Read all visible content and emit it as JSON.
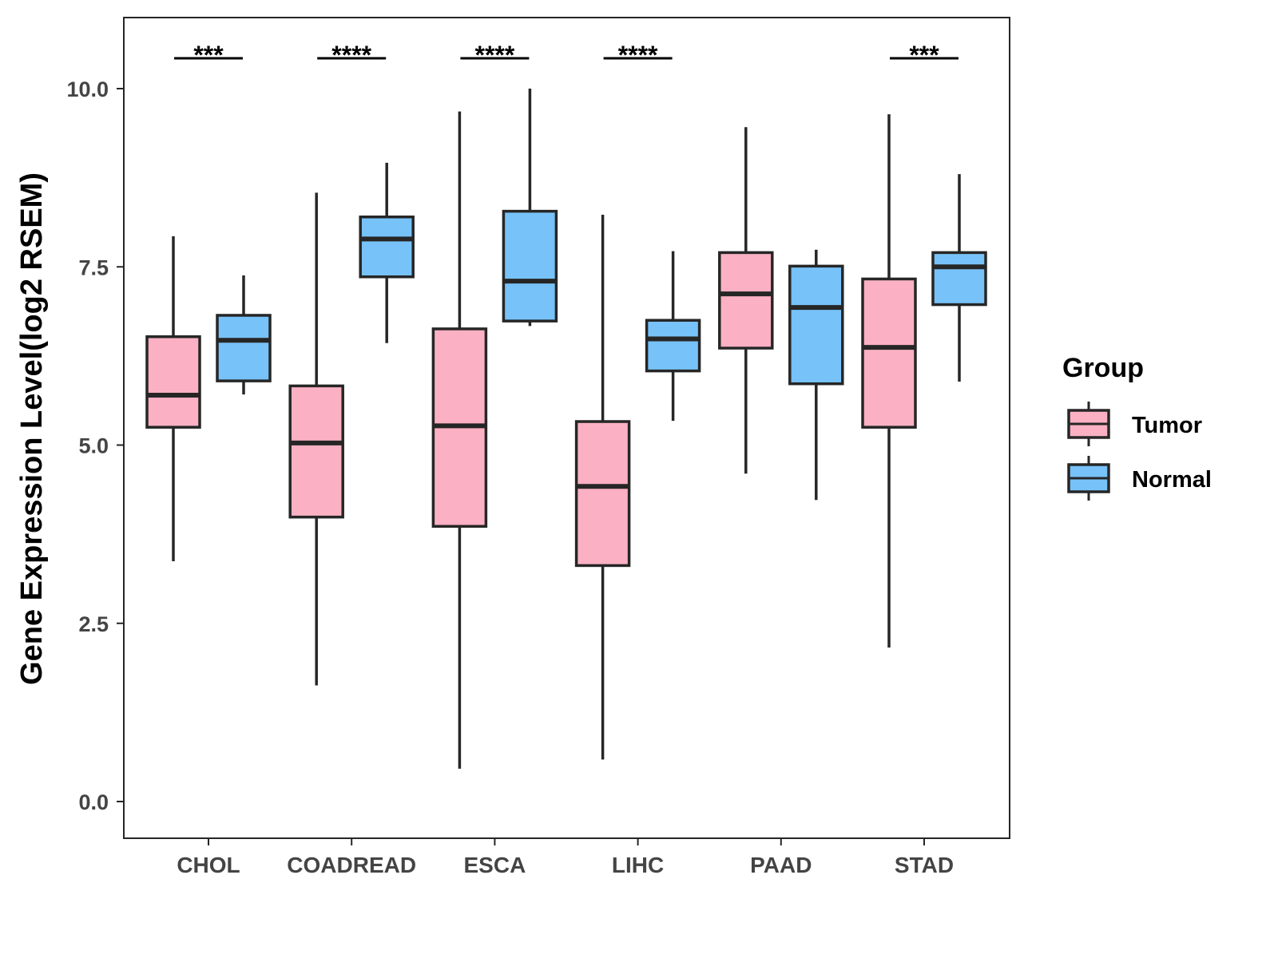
{
  "chart_data": {
    "type": "box",
    "title": "",
    "xlabel": "",
    "ylabel": "Gene Expression Level(log2 RSEM)",
    "ylim": [
      -0.52,
      11.0
    ],
    "yticks": [
      "0.0",
      "2.5",
      "5.0",
      "7.5",
      "10.0"
    ],
    "ytick_values": [
      0,
      2.5,
      5,
      7.5,
      10
    ],
    "categories": [
      "CHOL",
      "COADREAD",
      "ESCA",
      "LIHC",
      "PAAD",
      "STAD"
    ],
    "legend": {
      "title": "Group",
      "position": "right",
      "entries": [
        "Tumor",
        "Normal"
      ]
    },
    "colors": {
      "Tumor": "#FBB1C3",
      "Normal": "#77C2F8",
      "outline": "#262626"
    },
    "series": [
      {
        "name": "Tumor",
        "boxes": [
          {
            "min": 3.37,
            "q1": 5.25,
            "median": 5.7,
            "q3": 6.52,
            "max": 7.93
          },
          {
            "min": 1.63,
            "q1": 3.99,
            "median": 5.03,
            "q3": 5.83,
            "max": 8.54
          },
          {
            "min": 0.46,
            "q1": 3.86,
            "median": 5.27,
            "q3": 6.63,
            "max": 9.68
          },
          {
            "min": 0.59,
            "q1": 3.31,
            "median": 4.42,
            "q3": 5.33,
            "max": 8.23
          },
          {
            "min": 4.6,
            "q1": 6.36,
            "median": 7.12,
            "q3": 7.7,
            "max": 9.46
          },
          {
            "min": 2.16,
            "q1": 5.25,
            "median": 6.37,
            "q3": 7.33,
            "max": 9.64
          }
        ]
      },
      {
        "name": "Normal",
        "boxes": [
          {
            "min": 5.71,
            "q1": 5.9,
            "median": 6.47,
            "q3": 6.82,
            "max": 7.38
          },
          {
            "min": 6.43,
            "q1": 7.36,
            "median": 7.89,
            "q3": 8.2,
            "max": 8.96
          },
          {
            "min": 6.67,
            "q1": 6.74,
            "median": 7.3,
            "q3": 8.28,
            "max": 10.0
          },
          {
            "min": 5.34,
            "q1": 6.04,
            "median": 6.49,
            "q3": 6.75,
            "max": 7.72
          },
          {
            "min": 4.23,
            "q1": 5.86,
            "median": 6.93,
            "q3": 7.51,
            "max": 7.74
          },
          {
            "min": 5.89,
            "q1": 6.97,
            "median": 7.5,
            "q3": 7.7,
            "max": 8.8
          }
        ]
      }
    ],
    "significance": [
      "***",
      "****",
      "****",
      "****",
      "",
      "***"
    ]
  }
}
